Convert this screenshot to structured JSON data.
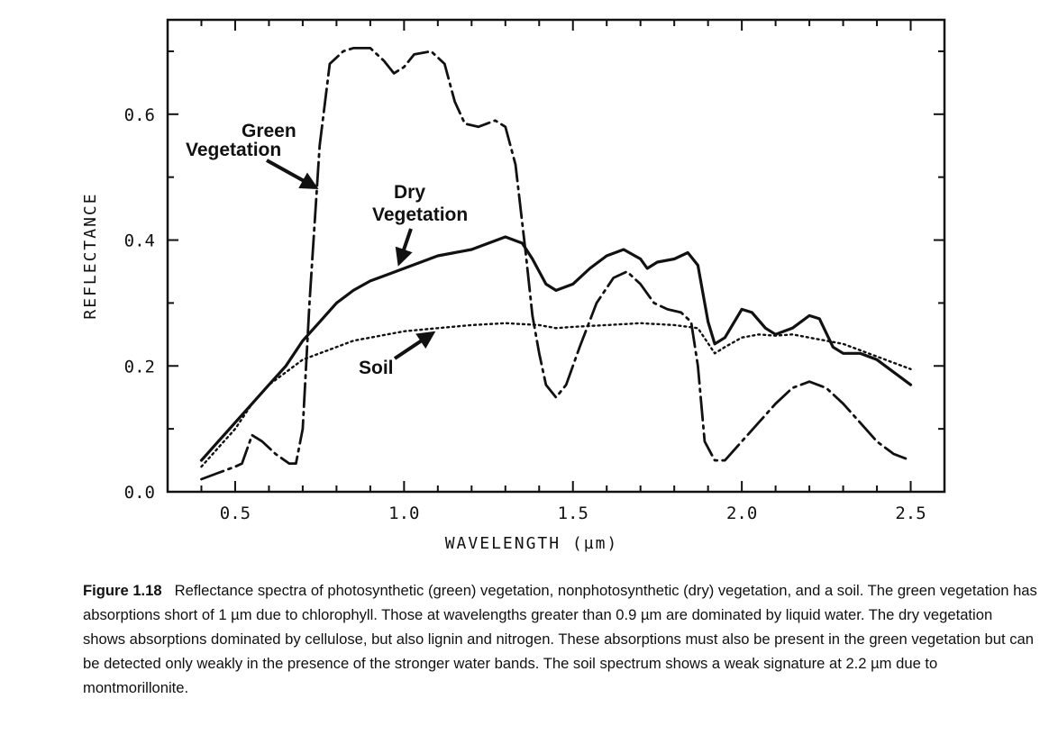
{
  "chart_data": {
    "type": "line",
    "xlabel": "WAVELENGTH   (µm)",
    "ylabel": "REFLECTANCE",
    "xlim": [
      0.3,
      2.6
    ],
    "ylim": [
      0.0,
      0.75
    ],
    "xticks": [
      "0.5",
      "1.0",
      "1.5",
      "2.0",
      "2.5"
    ],
    "yticks": [
      "0.0",
      "0.2",
      "0.4",
      "0.6"
    ],
    "grid": false,
    "series": [
      {
        "name": "Green Vegetation",
        "style": "dash-dot",
        "points": [
          [
            0.4,
            0.02
          ],
          [
            0.45,
            0.03
          ],
          [
            0.5,
            0.04
          ],
          [
            0.52,
            0.045
          ],
          [
            0.55,
            0.09
          ],
          [
            0.58,
            0.08
          ],
          [
            0.62,
            0.06
          ],
          [
            0.66,
            0.045
          ],
          [
            0.68,
            0.045
          ],
          [
            0.7,
            0.1
          ],
          [
            0.72,
            0.3
          ],
          [
            0.75,
            0.55
          ],
          [
            0.78,
            0.68
          ],
          [
            0.82,
            0.7
          ],
          [
            0.85,
            0.705
          ],
          [
            0.9,
            0.705
          ],
          [
            0.94,
            0.685
          ],
          [
            0.97,
            0.665
          ],
          [
            1.0,
            0.675
          ],
          [
            1.03,
            0.695
          ],
          [
            1.08,
            0.7
          ],
          [
            1.12,
            0.68
          ],
          [
            1.15,
            0.62
          ],
          [
            1.18,
            0.585
          ],
          [
            1.22,
            0.58
          ],
          [
            1.27,
            0.59
          ],
          [
            1.3,
            0.58
          ],
          [
            1.33,
            0.52
          ],
          [
            1.36,
            0.38
          ],
          [
            1.38,
            0.28
          ],
          [
            1.4,
            0.22
          ],
          [
            1.42,
            0.17
          ],
          [
            1.45,
            0.15
          ],
          [
            1.48,
            0.17
          ],
          [
            1.52,
            0.23
          ],
          [
            1.57,
            0.3
          ],
          [
            1.62,
            0.34
          ],
          [
            1.66,
            0.35
          ],
          [
            1.7,
            0.33
          ],
          [
            1.74,
            0.3
          ],
          [
            1.78,
            0.29
          ],
          [
            1.82,
            0.285
          ],
          [
            1.85,
            0.27
          ],
          [
            1.87,
            0.2
          ],
          [
            1.89,
            0.08
          ],
          [
            1.92,
            0.05
          ],
          [
            1.95,
            0.05
          ],
          [
            2.0,
            0.08
          ],
          [
            2.05,
            0.11
          ],
          [
            2.1,
            0.14
          ],
          [
            2.15,
            0.165
          ],
          [
            2.2,
            0.175
          ],
          [
            2.25,
            0.165
          ],
          [
            2.3,
            0.14
          ],
          [
            2.35,
            0.11
          ],
          [
            2.4,
            0.08
          ],
          [
            2.45,
            0.06
          ],
          [
            2.5,
            0.05
          ]
        ]
      },
      {
        "name": "Dry Vegetation",
        "style": "solid",
        "points": [
          [
            0.4,
            0.05
          ],
          [
            0.45,
            0.08
          ],
          [
            0.5,
            0.11
          ],
          [
            0.55,
            0.14
          ],
          [
            0.6,
            0.17
          ],
          [
            0.65,
            0.2
          ],
          [
            0.7,
            0.24
          ],
          [
            0.75,
            0.27
          ],
          [
            0.8,
            0.3
          ],
          [
            0.85,
            0.32
          ],
          [
            0.9,
            0.335
          ],
          [
            0.95,
            0.345
          ],
          [
            1.0,
            0.355
          ],
          [
            1.05,
            0.365
          ],
          [
            1.1,
            0.375
          ],
          [
            1.15,
            0.38
          ],
          [
            1.2,
            0.385
          ],
          [
            1.25,
            0.395
          ],
          [
            1.3,
            0.405
          ],
          [
            1.35,
            0.395
          ],
          [
            1.38,
            0.37
          ],
          [
            1.42,
            0.33
          ],
          [
            1.45,
            0.32
          ],
          [
            1.5,
            0.33
          ],
          [
            1.55,
            0.355
          ],
          [
            1.6,
            0.375
          ],
          [
            1.65,
            0.385
          ],
          [
            1.7,
            0.37
          ],
          [
            1.72,
            0.355
          ],
          [
            1.75,
            0.365
          ],
          [
            1.8,
            0.37
          ],
          [
            1.84,
            0.38
          ],
          [
            1.87,
            0.36
          ],
          [
            1.9,
            0.27
          ],
          [
            1.92,
            0.235
          ],
          [
            1.95,
            0.245
          ],
          [
            2.0,
            0.29
          ],
          [
            2.03,
            0.285
          ],
          [
            2.07,
            0.26
          ],
          [
            2.1,
            0.25
          ],
          [
            2.15,
            0.26
          ],
          [
            2.2,
            0.28
          ],
          [
            2.23,
            0.275
          ],
          [
            2.27,
            0.23
          ],
          [
            2.3,
            0.22
          ],
          [
            2.35,
            0.22
          ],
          [
            2.4,
            0.21
          ],
          [
            2.45,
            0.19
          ],
          [
            2.5,
            0.17
          ]
        ]
      },
      {
        "name": "Soil",
        "style": "dotted",
        "points": [
          [
            0.4,
            0.04
          ],
          [
            0.45,
            0.07
          ],
          [
            0.5,
            0.1
          ],
          [
            0.55,
            0.14
          ],
          [
            0.6,
            0.17
          ],
          [
            0.65,
            0.19
          ],
          [
            0.7,
            0.21
          ],
          [
            0.75,
            0.22
          ],
          [
            0.8,
            0.23
          ],
          [
            0.85,
            0.24
          ],
          [
            0.9,
            0.245
          ],
          [
            0.95,
            0.25
          ],
          [
            1.0,
            0.255
          ],
          [
            1.1,
            0.26
          ],
          [
            1.2,
            0.265
          ],
          [
            1.3,
            0.268
          ],
          [
            1.4,
            0.265
          ],
          [
            1.45,
            0.26
          ],
          [
            1.5,
            0.262
          ],
          [
            1.6,
            0.265
          ],
          [
            1.7,
            0.268
          ],
          [
            1.8,
            0.265
          ],
          [
            1.87,
            0.26
          ],
          [
            1.92,
            0.22
          ],
          [
            1.95,
            0.23
          ],
          [
            2.0,
            0.245
          ],
          [
            2.05,
            0.25
          ],
          [
            2.1,
            0.248
          ],
          [
            2.15,
            0.25
          ],
          [
            2.2,
            0.245
          ],
          [
            2.25,
            0.24
          ],
          [
            2.3,
            0.235
          ],
          [
            2.35,
            0.225
          ],
          [
            2.4,
            0.215
          ],
          [
            2.45,
            0.205
          ],
          [
            2.5,
            0.195
          ]
        ]
      }
    ],
    "annotations": [
      {
        "lines": [
          "Green",
          "Vegetation"
        ],
        "series": "Green Vegetation"
      },
      {
        "lines": [
          "Dry",
          "Vegetation"
        ],
        "series": "Dry Vegetation"
      },
      {
        "lines": [
          "Soil"
        ],
        "series": "Soil"
      }
    ]
  },
  "caption": {
    "figure_number": "Figure 1.18",
    "text": "Reflectance spectra of photosynthetic (green) vegetation, nonphotosynthetic (dry) vegetation, and a soil. The green vegetation has absorptions short of 1 µm due to chlorophyll. Those at wavelengths greater than 0.9 µm are dominated by liquid water. The dry vegetation shows absorptions dominated by cellulose, but also lignin and nitrogen. These absorptions must also be present in the green vegetation but can be detected only weakly in the presence of the stronger water bands. The soil spectrum shows a weak signature at 2.2 µm due to montmorillonite."
  }
}
